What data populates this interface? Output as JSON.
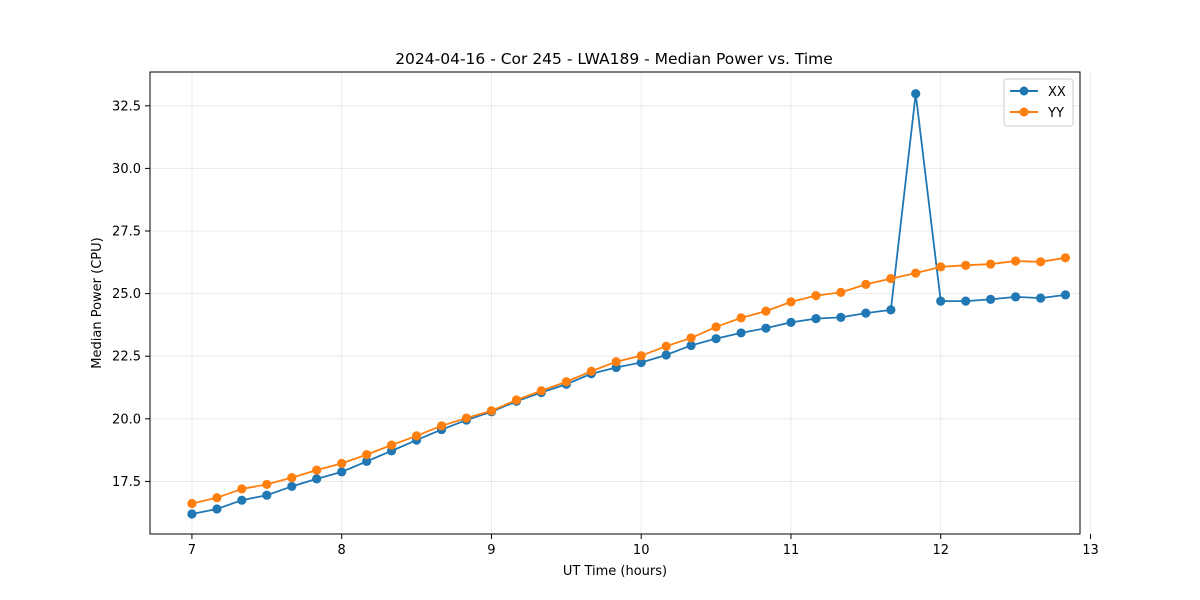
{
  "chart_data": {
    "type": "line",
    "title": "2024-04-16 - Cor 245 - LWA189 - Median Power vs. Time",
    "xlabel": "UT Time (hours)",
    "ylabel": "Median Power (CPU)",
    "xlim": [
      6.72,
      12.93
    ],
    "ylim": [
      15.4,
      33.85
    ],
    "xticks": [
      7,
      8,
      9,
      10,
      11,
      12,
      13
    ],
    "yticks": [
      17.5,
      20.0,
      22.5,
      25.0,
      27.5,
      30.0,
      32.5
    ],
    "ytick_labels": [
      "17.5",
      "20.0",
      "22.5",
      "25.0",
      "27.5",
      "30.0",
      "32.5"
    ],
    "grid": true,
    "legend_position": "top-right",
    "x": [
      7.0,
      7.167,
      7.333,
      7.5,
      7.667,
      7.833,
      8.0,
      8.167,
      8.333,
      8.5,
      8.667,
      8.833,
      9.0,
      9.167,
      9.333,
      9.5,
      9.667,
      9.833,
      10.0,
      10.167,
      10.333,
      10.5,
      10.667,
      10.833,
      11.0,
      11.167,
      11.333,
      11.5,
      11.667,
      11.833,
      12.0,
      12.167,
      12.333,
      12.5,
      12.667,
      12.833
    ],
    "series": [
      {
        "name": "XX",
        "color": "#1f77b4",
        "values": [
          16.2,
          16.4,
          16.75,
          16.95,
          17.3,
          17.6,
          17.88,
          18.3,
          18.72,
          19.15,
          19.57,
          19.95,
          20.28,
          20.7,
          21.05,
          21.38,
          21.8,
          22.05,
          22.25,
          22.55,
          22.93,
          23.2,
          23.43,
          23.62,
          23.85,
          24.0,
          24.05,
          24.22,
          24.35,
          32.98,
          24.7,
          24.7,
          24.77,
          24.87,
          24.82,
          24.95
        ]
      },
      {
        "name": "YY",
        "color": "#ff7f0e",
        "values": [
          16.62,
          16.85,
          17.2,
          17.38,
          17.65,
          17.95,
          18.22,
          18.57,
          18.95,
          19.32,
          19.72,
          20.03,
          20.32,
          20.75,
          21.12,
          21.48,
          21.9,
          22.28,
          22.52,
          22.9,
          23.23,
          23.67,
          24.03,
          24.3,
          24.67,
          24.92,
          25.05,
          25.37,
          25.6,
          25.82,
          26.07,
          26.13,
          26.18,
          26.3,
          26.27,
          26.43
        ]
      }
    ]
  }
}
